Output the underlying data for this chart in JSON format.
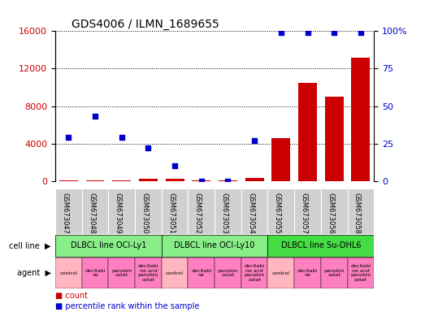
{
  "title": "GDS4006 / ILMN_1689655",
  "samples": [
    "GSM673047",
    "GSM673048",
    "GSM673049",
    "GSM673050",
    "GSM673051",
    "GSM673052",
    "GSM673053",
    "GSM673054",
    "GSM673055",
    "GSM673057",
    "GSM673056",
    "GSM673058"
  ],
  "bar_values": [
    100,
    100,
    100,
    200,
    200,
    100,
    100,
    300,
    4600,
    10500,
    9000,
    13200
  ],
  "scatter_values": [
    29,
    43,
    29,
    22,
    10,
    0,
    0,
    27,
    99,
    99,
    99,
    99
  ],
  "left_ylim": [
    0,
    16000
  ],
  "left_yticks": [
    0,
    4000,
    8000,
    12000,
    16000
  ],
  "right_ylim": [
    0,
    100
  ],
  "right_yticks": [
    0,
    25,
    50,
    75,
    100
  ],
  "cell_line_groups": [
    {
      "label": "DLBCL line OCI-Ly1",
      "start": 0,
      "end": 3,
      "color": "#88EE88"
    },
    {
      "label": "DLBCL line OCI-Ly10",
      "start": 4,
      "end": 7,
      "color": "#88EE88"
    },
    {
      "label": "DLBCL line Su-DHL6",
      "start": 8,
      "end": 11,
      "color": "#44DD44"
    }
  ],
  "agent_labels": [
    "control",
    "decitabi\nne",
    "panobin\nostat",
    "decitabi\nne and\npanobin\nostat",
    "control",
    "decitabi\nne",
    "panobin\nostat",
    "decitabi\nne and\npanobin\nostat",
    "control",
    "decitabi\nne",
    "panobin\nostat",
    "decitabi\nne and\npanobin\nostat"
  ],
  "agent_colors": [
    "#FFB6C1",
    "#FF80C0",
    "#FF80C0",
    "#FF80C0",
    "#FFB6C1",
    "#FF80C0",
    "#FF80C0",
    "#FF80C0",
    "#FFB6C1",
    "#FF80C0",
    "#FF80C0",
    "#FF80C0"
  ],
  "bar_color": "#CC0000",
  "scatter_color": "#0000CC",
  "tick_color_left": "#CC0000",
  "tick_color_right": "#0000CC",
  "grid_color": "#000000",
  "sample_bg_color": "#D0D0D0",
  "legend_count_color": "#CC0000",
  "legend_pct_color": "#0000CC"
}
